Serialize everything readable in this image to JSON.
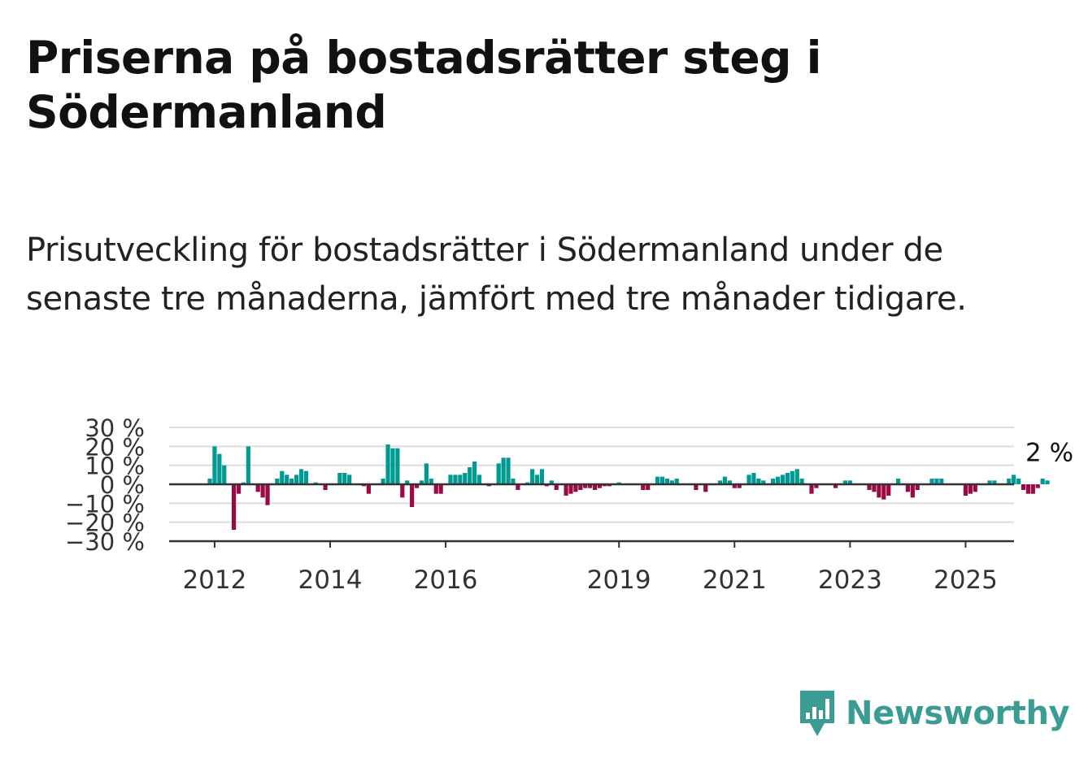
{
  "title": "Priserna på bostadsrätter steg i Södermanland",
  "subtitle": "Prisutveckling för bostadsrätter i Södermanland under de senaste tre månaderna, jämfört med tre månader tidigare.",
  "brand": {
    "name": "Newsworthy",
    "icon": "newsworthy-logo-icon",
    "color": "#3a9c93"
  },
  "colors": {
    "positive": "#009a93",
    "negative": "#9b0a45",
    "grid": "#dddddd",
    "axis": "#333333"
  },
  "chart_data": {
    "type": "bar",
    "x_start": "2011-12",
    "interval": "monthly",
    "ylim": [
      -30,
      30
    ],
    "yticks": [
      30,
      20,
      10,
      0,
      -10,
      -20,
      -30
    ],
    "ytick_labels": [
      "30 %",
      "20 %",
      "10 %",
      "0 %",
      "−10 %",
      "−20 %",
      "−30 %"
    ],
    "xticks": [
      "2012",
      "2014",
      "2016",
      "2019",
      "2021",
      "2023",
      "2025"
    ],
    "grid": true,
    "last_value_label": "2 %",
    "values": [
      3,
      20,
      16,
      10,
      0,
      -24,
      -5,
      1,
      20,
      0,
      -4,
      -7,
      -11,
      0,
      3,
      7,
      5,
      3,
      5,
      8,
      7,
      0,
      1,
      0,
      -3,
      0,
      0,
      6,
      6,
      5,
      0,
      0,
      -1,
      -5,
      0,
      0,
      3,
      21,
      19,
      19,
      -7,
      2,
      -12,
      -2,
      2,
      11,
      3,
      -5,
      -5,
      0,
      5,
      5,
      5,
      6,
      9,
      12,
      5,
      0,
      -1,
      0,
      11,
      14,
      14,
      3,
      -3,
      0,
      1,
      8,
      5,
      8,
      -1,
      2,
      -3,
      0,
      -6,
      -5,
      -4,
      -3,
      -2,
      -2,
      -3,
      -2,
      -1,
      -1,
      0,
      1,
      0,
      0,
      0,
      0,
      -3,
      -3,
      0,
      4,
      4,
      3,
      2,
      3,
      0,
      0,
      0,
      -3,
      0,
      -4,
      0,
      0,
      2,
      4,
      2,
      -2,
      -2,
      0,
      5,
      6,
      3,
      2,
      0,
      3,
      4,
      5,
      6,
      7,
      8,
      3,
      0,
      -5,
      -2,
      0,
      0,
      0,
      -2,
      0,
      2,
      2,
      0,
      0,
      0,
      -3,
      -4,
      -7,
      -8,
      -6,
      0,
      3,
      0,
      -4,
      -7,
      -3,
      0,
      0,
      3,
      3,
      3,
      0,
      0,
      0,
      0,
      -6,
      -5,
      -4,
      0,
      0,
      2,
      2,
      0,
      0,
      3,
      5,
      3,
      -3,
      -5,
      -5,
      -2,
      3,
      2
    ]
  }
}
